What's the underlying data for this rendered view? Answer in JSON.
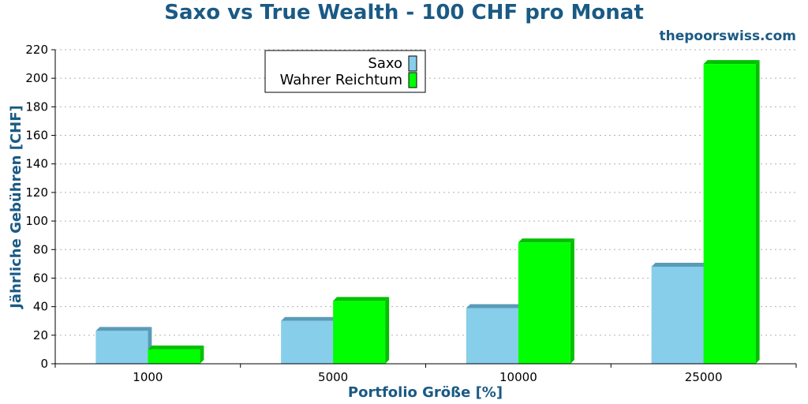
{
  "chart_data": {
    "type": "bar",
    "title": "Saxo vs True Wealth - 100 CHF pro Monat",
    "credit": "thepoorswiss.com",
    "xlabel": "Portfolio Größe [%]",
    "ylabel": "Jährliche Gebühren [CHF]",
    "categories": [
      "1000",
      "5000",
      "10000",
      "25000"
    ],
    "ylim": [
      0,
      220
    ],
    "yticks": [
      0,
      20,
      40,
      60,
      80,
      100,
      120,
      140,
      160,
      180,
      200,
      220
    ],
    "grid": true,
    "legend_position": "top-center",
    "series": [
      {
        "name": "Saxo",
        "values": [
          23,
          30,
          39,
          68
        ],
        "color": "#87ceeb",
        "shade": "#5a9bb8"
      },
      {
        "name": "Wahrer Reichtum",
        "values": [
          10,
          44,
          85,
          210
        ],
        "color": "#00ff00",
        "shade": "#00c000"
      }
    ]
  }
}
